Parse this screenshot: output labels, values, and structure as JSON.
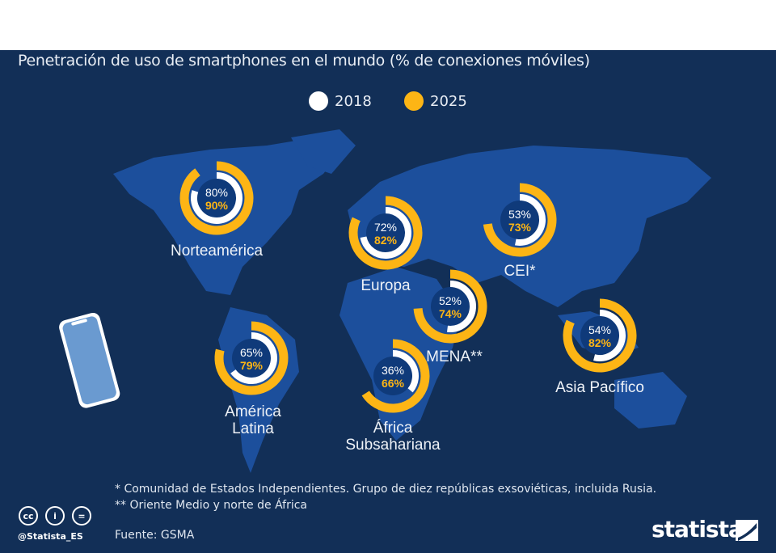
{
  "title": "Penetración de uso de smartphones en el mundo (% de conexiones móviles)",
  "colors": {
    "background": "#122f57",
    "map": "#1c4f9c",
    "y2018": "#ffffff",
    "y2025": "#fdb515"
  },
  "chart_data": {
    "type": "donut",
    "title": "Penetración de uso de smartphones en el mundo (% de conexiones móviles)",
    "legend": [
      "2018",
      "2025"
    ],
    "legend_position": "top-center",
    "regions": [
      {
        "name": "Norteamérica",
        "v2018": 80,
        "v2025": 90,
        "label2018": "80%",
        "label2025": "90%"
      },
      {
        "name": "Europa",
        "v2018": 72,
        "v2025": 82,
        "label2018": "72%",
        "label2025": "82%"
      },
      {
        "name": "CEI*",
        "v2018": 53,
        "v2025": 73,
        "label2018": "53%",
        "label2025": "73%"
      },
      {
        "name": "MENA**",
        "v2018": 52,
        "v2025": 74,
        "label2018": "52%",
        "label2025": "74%"
      },
      {
        "name": "América Latina",
        "v2018": 65,
        "v2025": 79,
        "label2018": "65%",
        "label2025": "79%"
      },
      {
        "name": "África Subsahariana",
        "v2018": 36,
        "v2025": 66,
        "label2018": "36%",
        "label2025": "66%"
      },
      {
        "name": "Asia Pacífico",
        "v2018": 54,
        "v2025": 82,
        "label2018": "54%",
        "label2025": "82%"
      }
    ]
  },
  "footnotes": {
    "note1": "*   Comunidad de Estados Independientes. Grupo de diez repúblicas exsoviéticas, incluida Rusia.",
    "note2": "** Oriente Medio y norte de África",
    "source": "Fuente: GSMA"
  },
  "brand": {
    "handle": "@Statista_ES",
    "logo": "statista"
  }
}
